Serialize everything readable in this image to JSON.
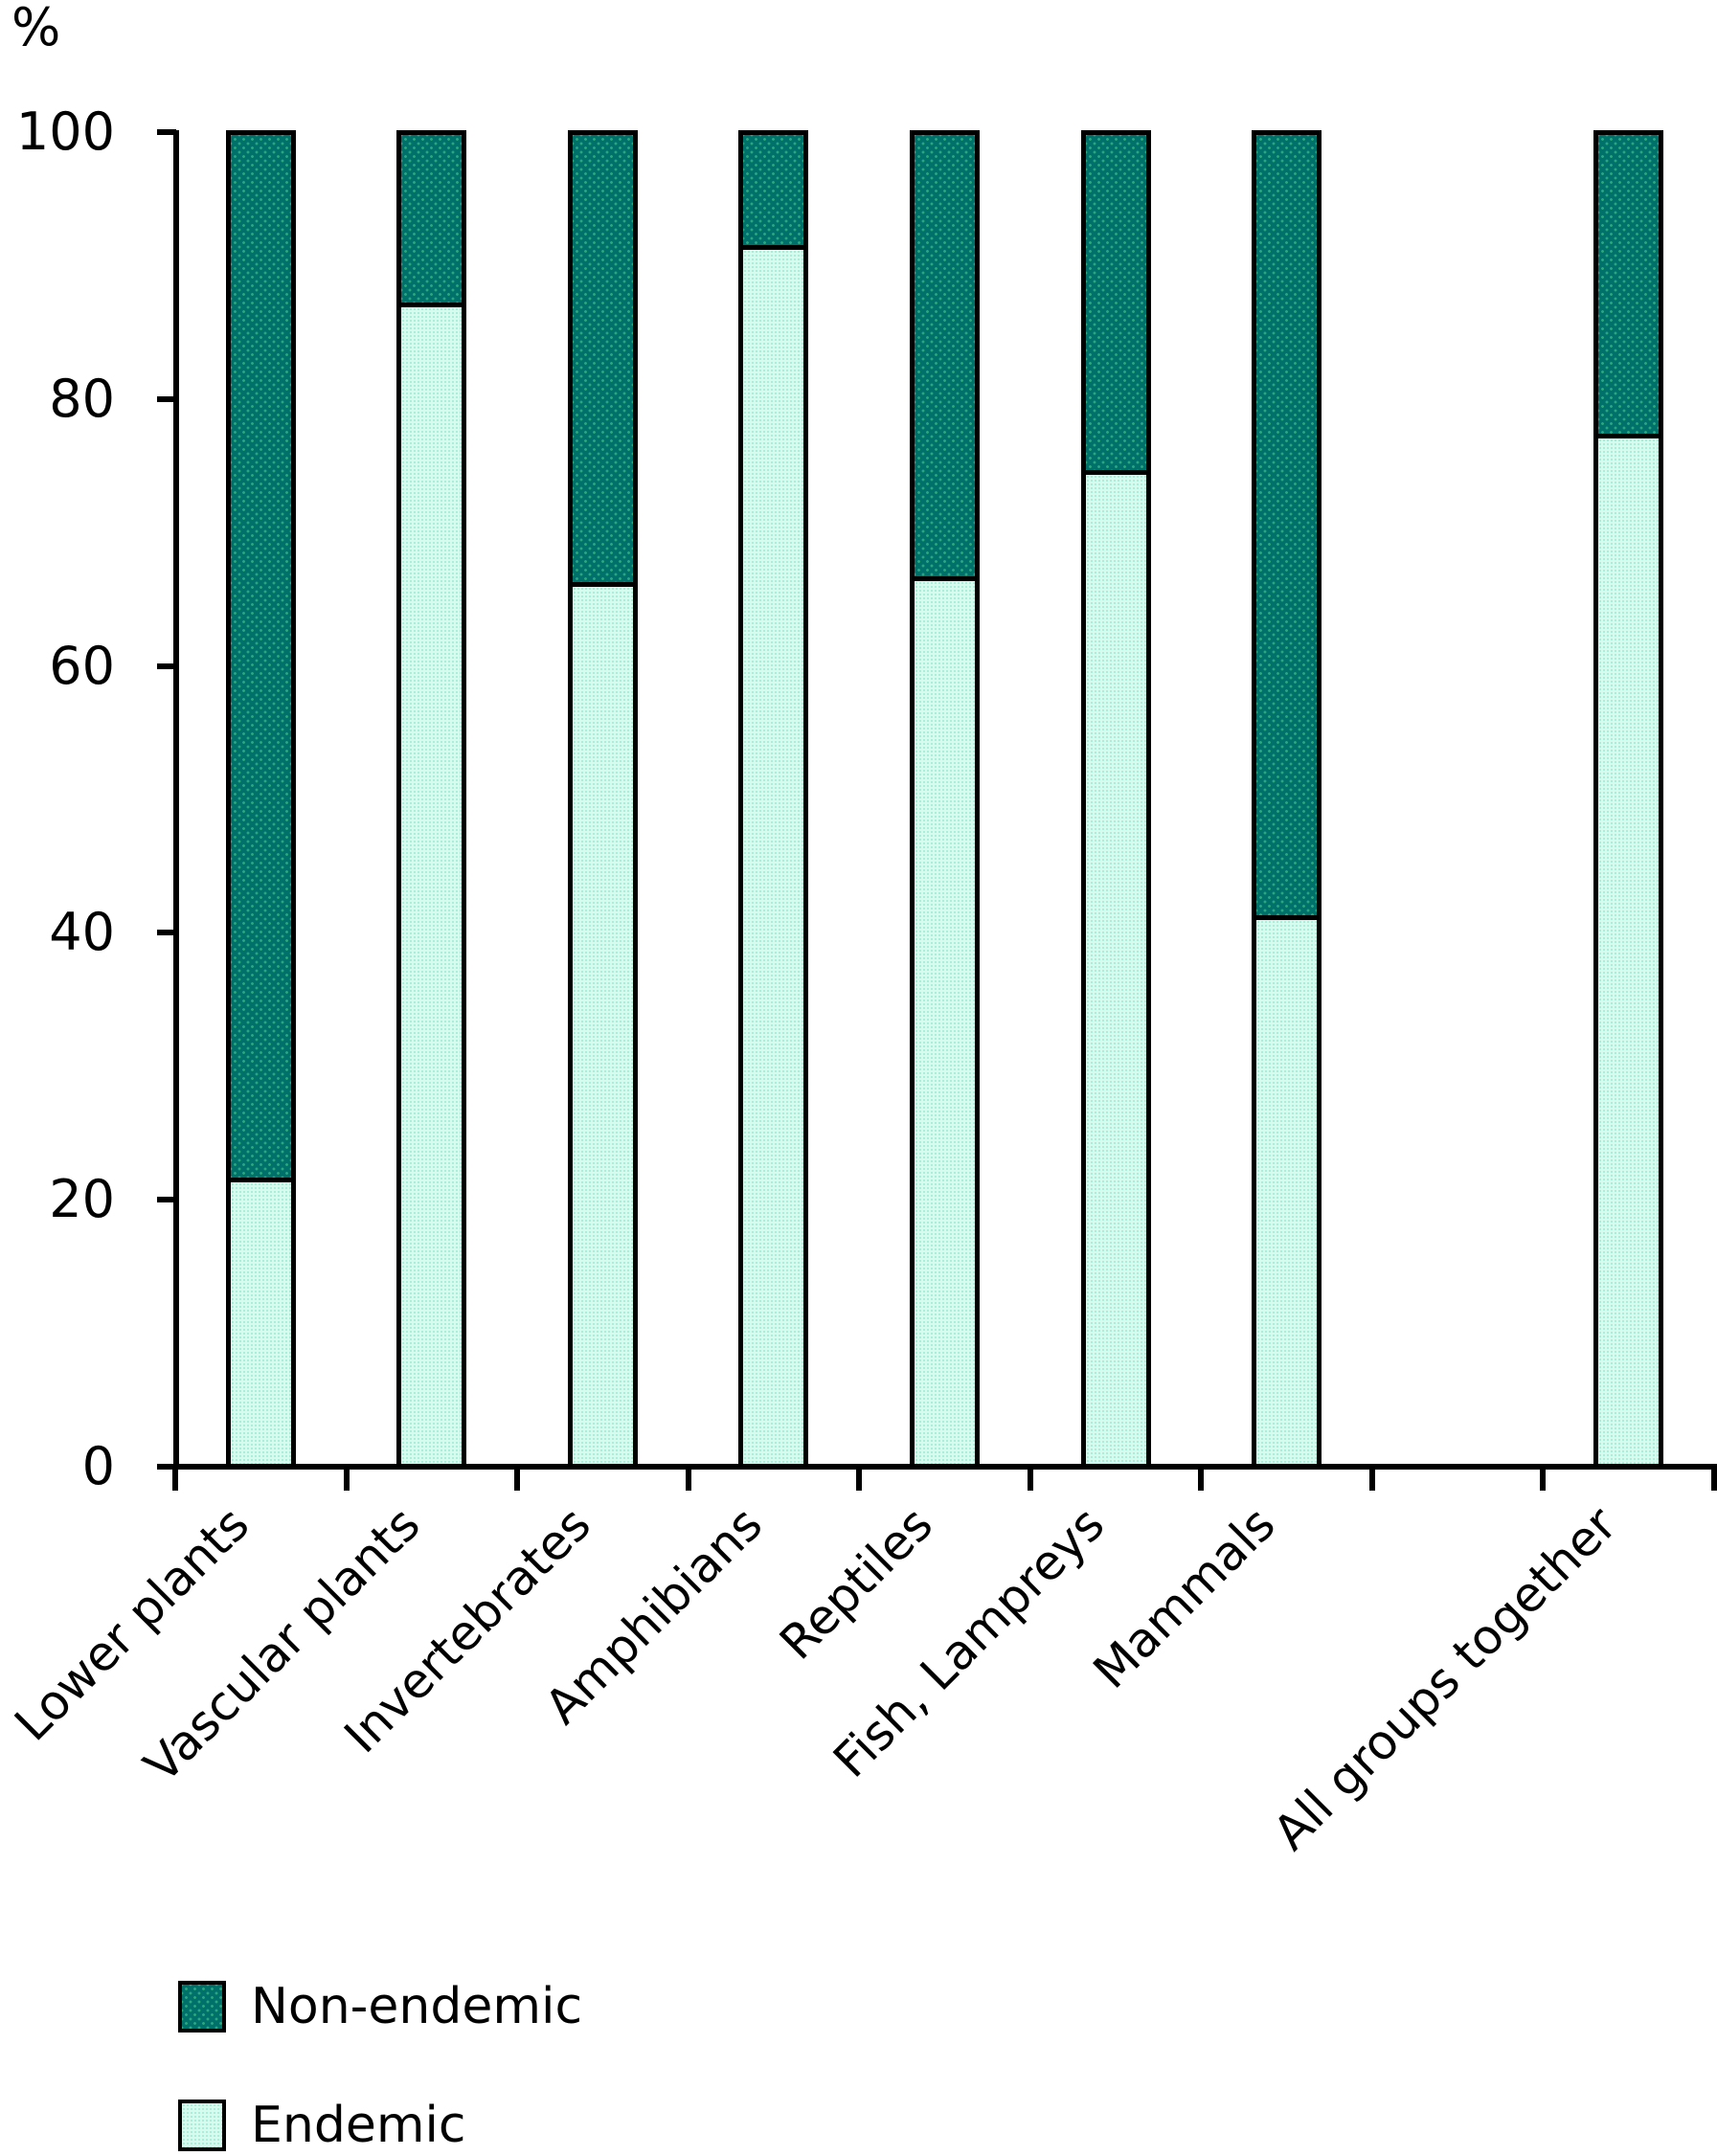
{
  "chart_data": {
    "type": "bar",
    "stacked": true,
    "ylabel": "%",
    "ylim": [
      0,
      100
    ],
    "yticks": [
      0,
      20,
      40,
      60,
      80,
      100
    ],
    "grid": false,
    "categories": [
      "Lower plants",
      "Vascular plants",
      "Invertebrates",
      "Amphibians",
      "Reptiles",
      "Fish, Lampreys",
      "Mammals",
      "All groups together"
    ],
    "category_slots": [
      0,
      1,
      2,
      3,
      4,
      5,
      6,
      8
    ],
    "num_slots": 9,
    "series": [
      {
        "name": "Non-endemic",
        "color": "#00716a",
        "values": [
          78.3,
          12.8,
          33.7,
          8.5,
          33.3,
          25.3,
          58.7,
          22.6
        ]
      },
      {
        "name": "Endemic",
        "color": "#d7fbee",
        "values": [
          21.7,
          87.2,
          66.3,
          91.5,
          66.7,
          74.7,
          41.3,
          77.4
        ]
      }
    ],
    "legend": {
      "position": "bottom-left",
      "items": [
        {
          "label": "Non-endemic"
        },
        {
          "label": "Endemic"
        }
      ]
    }
  }
}
